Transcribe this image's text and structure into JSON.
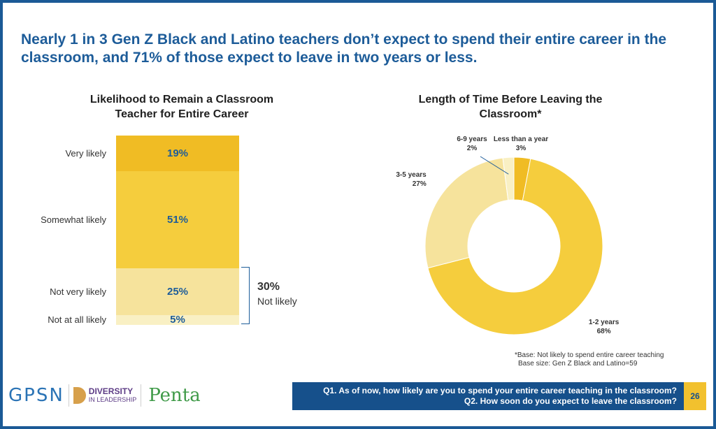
{
  "headline": "Nearly 1 in 3 Gen Z Black and Latino teachers don’t expect to spend their entire career in the classroom, and 71% of those expect to leave in two years or less.",
  "chart_data": [
    {
      "type": "bar",
      "title": "Likelihood to Remain a Classroom Teacher for Entire Career",
      "categories": [
        "Very likely",
        "Somewhat likely",
        "Not very likely",
        "Not at all likely"
      ],
      "values": [
        19,
        51,
        25,
        5
      ],
      "value_labels": [
        "19%",
        "51%",
        "25%",
        "5%"
      ],
      "colors": [
        "#f0bc24",
        "#f5cd3d",
        "#f6e39c",
        "#f9f0c4"
      ],
      "stacked": true,
      "annotation": {
        "value": "30%",
        "text": "Not likely"
      }
    },
    {
      "type": "pie",
      "title": "Length of Time Before Leaving the Classroom*",
      "donut": true,
      "categories": [
        "Less than a year",
        "1-2 years",
        "3-5 years",
        "6-9 years"
      ],
      "values": [
        3,
        68,
        27,
        2
      ],
      "value_labels": [
        "3%",
        "68%",
        "27%",
        "2%"
      ],
      "colors": [
        "#f0bc24",
        "#f5cd3d",
        "#f6e39c",
        "#f9f0c4"
      ],
      "footnote": [
        "*Base: Not likely to spend entire career teaching",
        "Base size: Gen Z Black and Latino=59"
      ]
    }
  ],
  "logos": {
    "gpsn": "GPSN",
    "dil_line1": "DIVERSITY",
    "dil_line2": "IN LEADERSHIP",
    "penta": "Penta"
  },
  "questions": [
    "Q1. As of now, how likely are you to spend your entire career teaching in the classroom?",
    "Q2. How soon do you expect to leave the classroom?"
  ],
  "page_number": "26"
}
